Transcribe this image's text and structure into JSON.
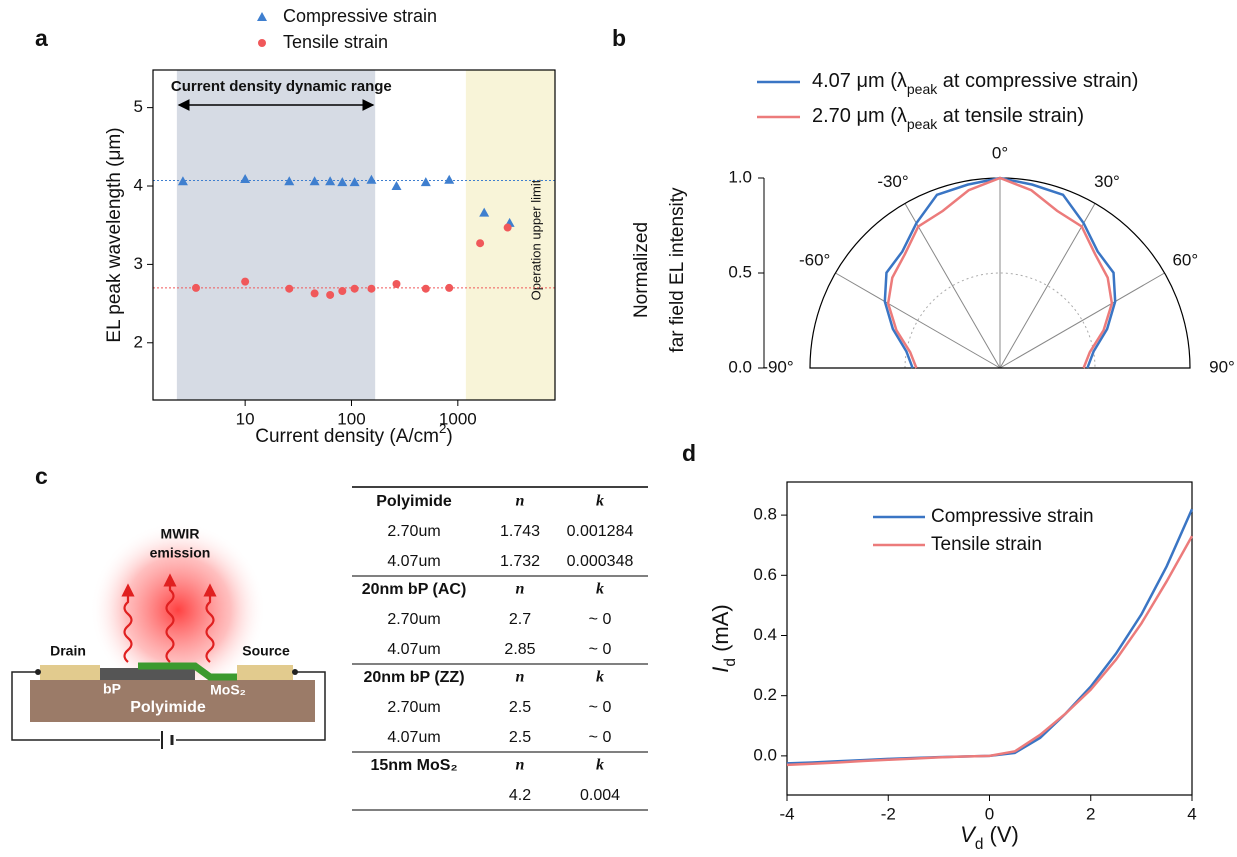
{
  "panel_labels": [
    "a",
    "b",
    "c",
    "d"
  ],
  "chart_data": [
    {
      "type": "scatter",
      "log_x": true,
      "xlabel": [
        {
          "text": "Current density (A/cm"
        },
        {
          "text": "2",
          "style": "sup"
        },
        {
          "text": ")"
        }
      ],
      "ylabel": "EL peak wavelength (μm)",
      "xlim": [
        1.36,
        8200
      ],
      "xticks": [
        10,
        100,
        1000
      ],
      "ylim": [
        1.27,
        5.48
      ],
      "yticks": [
        2,
        3,
        4,
        5
      ],
      "series": [
        {
          "name": "Compressive strain",
          "marker": "triangle",
          "color": "#3f7fcf",
          "x": [
            2.6,
            10,
            26,
            45,
            63,
            82,
            107,
            154,
            265,
            500,
            830,
            1770,
            3070
          ],
          "values": [
            4.06,
            4.09,
            4.06,
            4.06,
            4.06,
            4.05,
            4.05,
            4.08,
            4.0,
            4.05,
            4.08,
            3.66,
            3.53
          ]
        },
        {
          "name": "Tensile strain",
          "marker": "circle",
          "color": "#f0585a",
          "x": [
            3.45,
            10,
            26,
            45,
            63,
            82,
            107,
            154,
            265,
            500,
            830,
            1620,
            2940
          ],
          "values": [
            2.7,
            2.78,
            2.69,
            2.63,
            2.61,
            2.66,
            2.69,
            2.69,
            2.75,
            2.69,
            2.7,
            3.27,
            3.47
          ]
        }
      ],
      "reference_lines": [
        {
          "value": 4.07,
          "color": "#3f7fcf"
        },
        {
          "value": 2.7,
          "color": "#f0585a"
        }
      ],
      "regions": [
        {
          "x": [
            2.28,
            167
          ],
          "color": "#d6dbe4",
          "label": "Current density dynamic range",
          "arrow": true
        },
        {
          "x": [
            1190,
            8200
          ],
          "color": "#f8f4d8",
          "label": "Operation upper limit",
          "label_rotated": true
        }
      ]
    },
    {
      "type": "polar",
      "theta": [
        -90,
        -80,
        -70,
        -60,
        -50,
        -40,
        -30,
        -20,
        -10,
        0,
        10,
        20,
        30,
        40,
        50,
        60,
        70,
        80,
        90
      ],
      "series": [
        {
          "name": [
            {
              "text": "4.07 μm (λ"
            },
            {
              "text": "peak",
              "style": "sub"
            },
            {
              "text": " at compressive strain)"
            }
          ],
          "color": "#3a75c4",
          "values": [
            0.46,
            0.5,
            0.6,
            0.7,
            0.78,
            0.8,
            0.88,
            0.97,
            0.98,
            1.0,
            0.98,
            0.97,
            0.88,
            0.8,
            0.78,
            0.7,
            0.6,
            0.5,
            0.46
          ]
        },
        {
          "name": [
            {
              "text": "2.70 μm (λ"
            },
            {
              "text": "peak",
              "style": "sub"
            },
            {
              "text": " at tensile strain)"
            }
          ],
          "color": "#ec7b7b",
          "values": [
            0.44,
            0.48,
            0.58,
            0.68,
            0.74,
            0.78,
            0.86,
            0.88,
            0.95,
            1.0,
            0.95,
            0.88,
            0.86,
            0.78,
            0.74,
            0.68,
            0.58,
            0.48,
            0.44
          ]
        }
      ],
      "rlim": [
        0,
        1
      ],
      "rticks": [
        {
          "value": 0,
          "label": "0.0"
        },
        0.5,
        {
          "value": 1,
          "label": "1.0"
        }
      ],
      "thetaticks": [
        {
          "value": -90,
          "label": "-90°"
        },
        {
          "value": -60,
          "label": "-60°"
        },
        {
          "value": -30,
          "label": "-30°"
        },
        {
          "value": 0,
          "label": "0°"
        },
        {
          "value": 30,
          "label": "30°"
        },
        {
          "value": 60,
          "label": "60°"
        },
        {
          "value": 90,
          "label": "90°"
        }
      ],
      "rlabel": [
        "Normalized",
        "far field EL intensity"
      ]
    },
    {
      "type": "line",
      "xlabel": [
        {
          "text": "V",
          "style": "italic"
        },
        {
          "text": "d",
          "style": "sub"
        },
        {
          "text": " (V)"
        }
      ],
      "ylabel": [
        {
          "text": "I",
          "style": "italic"
        },
        {
          "text": "d",
          "style": "sub"
        },
        {
          "text": " (mA)"
        }
      ],
      "x": [
        -4,
        -3.5,
        -3,
        -2.5,
        -2,
        -1.5,
        -1,
        -0.5,
        0,
        0.5,
        1,
        1.5,
        2,
        2.5,
        3,
        3.5,
        4
      ],
      "series": [
        {
          "name": "Compressive strain",
          "color": "#3a75c4",
          "values": [
            -0.025,
            -0.022,
            -0.018,
            -0.014,
            -0.01,
            -0.007,
            -0.004,
            -0.002,
            0.0,
            0.01,
            0.06,
            0.14,
            0.23,
            0.34,
            0.47,
            0.63,
            0.82
          ]
        },
        {
          "name": "Tensile strain",
          "color": "#ec7b7b",
          "values": [
            -0.03,
            -0.026,
            -0.022,
            -0.017,
            -0.013,
            -0.009,
            -0.005,
            -0.002,
            0.0,
            0.015,
            0.07,
            0.14,
            0.22,
            0.32,
            0.44,
            0.58,
            0.73
          ]
        }
      ],
      "xlim": [
        -4,
        4
      ],
      "xticks": [
        -4,
        -2,
        0,
        2,
        4
      ],
      "ylim": [
        -0.13,
        0.91
      ],
      "yticks": [
        {
          "value": 0,
          "label": "0.0"
        },
        0.2,
        0.4,
        0.6,
        0.8
      ]
    }
  ],
  "diagram": {
    "emission_label": [
      "MWIR",
      "emission"
    ],
    "drain": "Drain",
    "source": "Source",
    "bp": "bP",
    "mos2": "MoS₂",
    "substrate": "Polyimide"
  },
  "table": {
    "sections": [
      {
        "header": [
          "Polyimide",
          "n",
          "k"
        ],
        "rows": [
          [
            "2.70um",
            1.743,
            0.001284
          ],
          [
            "4.07um",
            1.732,
            0.000348
          ]
        ]
      },
      {
        "header": [
          "20nm bP (AC)",
          "n",
          "k"
        ],
        "rows": [
          [
            "2.70um",
            2.7,
            "~ 0"
          ],
          [
            "4.07um",
            2.85,
            "~ 0"
          ]
        ]
      },
      {
        "header": [
          "20nm bP (ZZ)",
          "n",
          "k"
        ],
        "rows": [
          [
            "2.70um",
            2.5,
            "~ 0"
          ],
          [
            "4.07um",
            2.5,
            "~ 0"
          ]
        ]
      },
      {
        "header": [
          "15nm MoS₂",
          "n",
          "k"
        ],
        "rows": [
          [
            null,
            4.2,
            0.004
          ]
        ]
      }
    ]
  }
}
